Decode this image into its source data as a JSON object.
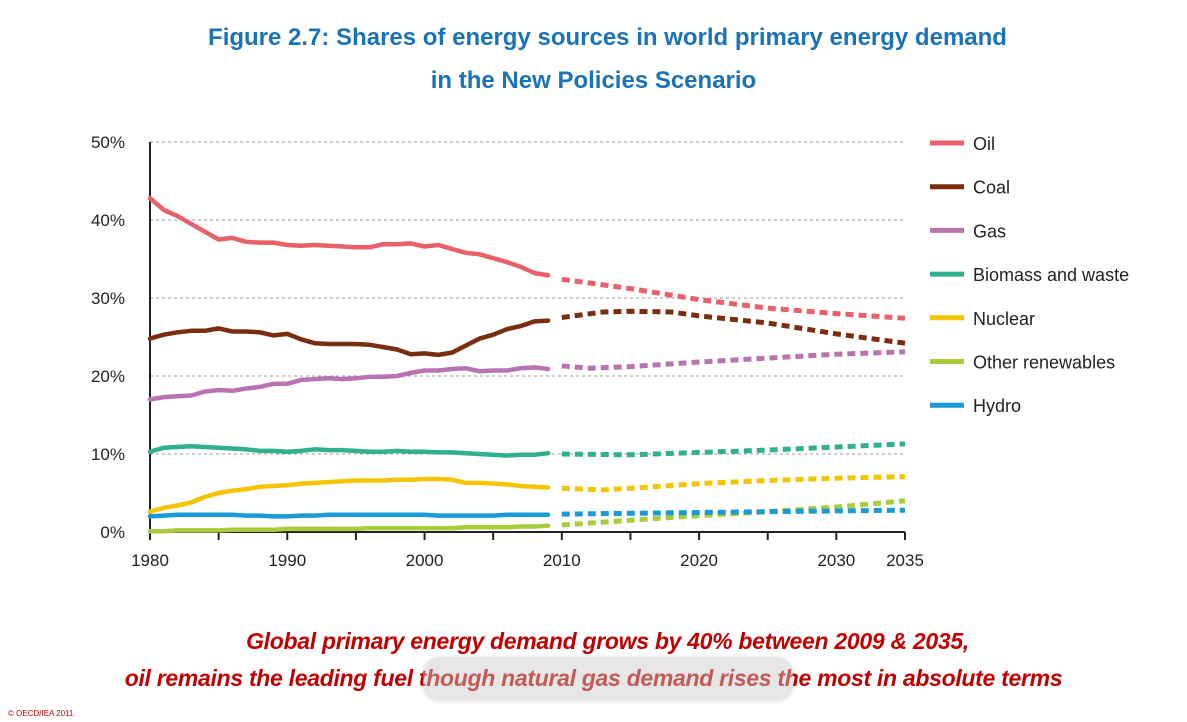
{
  "title": {
    "line1": "Figure 2.7: Shares of energy sources in world primary energy demand",
    "line2": "in the New Policies Scenario"
  },
  "caption": {
    "line1": "Global primary energy demand grows by 40% between 2009 & 2035,",
    "line2": "oil remains the leading fuel though natural gas demand rises the most in absolute terms"
  },
  "copyright": "© OECD/IEA 2011",
  "colors": {
    "title": "#1a72b8",
    "caption": "#c00000"
  },
  "chart_data": {
    "type": "line",
    "xlim": [
      1980,
      2035
    ],
    "ylim": [
      0,
      50
    ],
    "x_ticks": [
      "1980",
      "1990",
      "2000",
      "2010",
      "2020",
      "2030",
      "2035"
    ],
    "y_ticks": [
      "0%",
      "10%",
      "20%",
      "30%",
      "40%",
      "50%"
    ],
    "grid": "horizontal dotted",
    "legend": "right",
    "historical_x": [
      1980,
      1981,
      1982,
      1983,
      1984,
      1985,
      1986,
      1987,
      1988,
      1989,
      1990,
      1991,
      1992,
      1993,
      1994,
      1995,
      1996,
      1997,
      1998,
      1999,
      2000,
      2001,
      2002,
      2003,
      2004,
      2005,
      2006,
      2007,
      2008,
      2009
    ],
    "projection_style": "dashed",
    "series": [
      {
        "name": "Oil",
        "color": "#e8606a",
        "historical": [
          42.8,
          41.3,
          40.5,
          39.5,
          38.5,
          37.5,
          37.7,
          37.2,
          37.1,
          37.1,
          36.8,
          36.7,
          36.8,
          36.7,
          36.6,
          36.5,
          36.5,
          36.9,
          36.9,
          37.0,
          36.6,
          36.8,
          36.3,
          35.8,
          35.6,
          35.1,
          34.6,
          34.0,
          33.2,
          32.9
        ],
        "projection": [
          [
            2010,
            32.4
          ],
          [
            2015,
            31.2
          ],
          [
            2020,
            29.8
          ],
          [
            2025,
            28.7
          ],
          [
            2030,
            28.0
          ],
          [
            2035,
            27.4
          ]
        ]
      },
      {
        "name": "Coal",
        "color": "#7b2d10",
        "historical": [
          24.8,
          25.3,
          25.6,
          25.8,
          25.8,
          26.1,
          25.7,
          25.7,
          25.6,
          25.2,
          25.4,
          24.7,
          24.2,
          24.1,
          24.1,
          24.1,
          24.0,
          23.7,
          23.4,
          22.8,
          22.9,
          22.7,
          23.0,
          23.9,
          24.8,
          25.3,
          26.0,
          26.4,
          27.0,
          27.1
        ],
        "projection": [
          [
            2010,
            27.5
          ],
          [
            2013,
            28.2
          ],
          [
            2015,
            28.3
          ],
          [
            2018,
            28.2
          ],
          [
            2020,
            27.7
          ],
          [
            2025,
            26.8
          ],
          [
            2030,
            25.4
          ],
          [
            2035,
            24.2
          ]
        ]
      },
      {
        "name": "Gas",
        "color": "#b873b0",
        "historical": [
          17.0,
          17.3,
          17.4,
          17.5,
          18.0,
          18.2,
          18.1,
          18.4,
          18.6,
          19.0,
          19.0,
          19.5,
          19.6,
          19.7,
          19.6,
          19.7,
          19.9,
          19.9,
          20.0,
          20.4,
          20.7,
          20.7,
          20.9,
          21.0,
          20.6,
          20.7,
          20.7,
          21.0,
          21.1,
          20.9
        ],
        "projection": [
          [
            2010,
            21.3
          ],
          [
            2012,
            21.0
          ],
          [
            2015,
            21.2
          ],
          [
            2020,
            21.8
          ],
          [
            2025,
            22.3
          ],
          [
            2030,
            22.8
          ],
          [
            2035,
            23.1
          ]
        ]
      },
      {
        "name": "Biomass and waste",
        "color": "#2fb08e",
        "historical": [
          10.3,
          10.8,
          10.9,
          11.0,
          10.9,
          10.8,
          10.7,
          10.6,
          10.4,
          10.4,
          10.3,
          10.4,
          10.6,
          10.5,
          10.5,
          10.4,
          10.3,
          10.3,
          10.4,
          10.3,
          10.3,
          10.2,
          10.2,
          10.1,
          10.0,
          9.9,
          9.8,
          9.9,
          9.9,
          10.1
        ],
        "projection": [
          [
            2010,
            10.0
          ],
          [
            2015,
            9.9
          ],
          [
            2020,
            10.2
          ],
          [
            2025,
            10.5
          ],
          [
            2030,
            10.9
          ],
          [
            2035,
            11.3
          ]
        ]
      },
      {
        "name": "Nuclear",
        "color": "#f5c400",
        "historical": [
          2.6,
          3.1,
          3.4,
          3.8,
          4.5,
          5.0,
          5.3,
          5.5,
          5.8,
          5.9,
          6.0,
          6.2,
          6.3,
          6.4,
          6.5,
          6.6,
          6.6,
          6.6,
          6.7,
          6.7,
          6.8,
          6.8,
          6.7,
          6.3,
          6.3,
          6.2,
          6.1,
          5.9,
          5.8,
          5.7
        ],
        "projection": [
          [
            2010,
            5.6
          ],
          [
            2013,
            5.4
          ],
          [
            2015,
            5.6
          ],
          [
            2020,
            6.2
          ],
          [
            2025,
            6.6
          ],
          [
            2030,
            6.9
          ],
          [
            2035,
            7.1
          ]
        ]
      },
      {
        "name": "Other renewables",
        "color": "#a8cc3a",
        "historical": [
          0.1,
          0.1,
          0.2,
          0.2,
          0.2,
          0.2,
          0.3,
          0.3,
          0.3,
          0.3,
          0.4,
          0.4,
          0.4,
          0.4,
          0.4,
          0.4,
          0.5,
          0.5,
          0.5,
          0.5,
          0.5,
          0.5,
          0.5,
          0.6,
          0.6,
          0.6,
          0.6,
          0.7,
          0.7,
          0.8
        ],
        "projection": [
          [
            2010,
            0.9
          ],
          [
            2015,
            1.5
          ],
          [
            2020,
            2.1
          ],
          [
            2025,
            2.6
          ],
          [
            2030,
            3.2
          ],
          [
            2035,
            4.0
          ]
        ]
      },
      {
        "name": "Hydro",
        "color": "#1a9ad8",
        "historical": [
          2.0,
          2.1,
          2.2,
          2.2,
          2.2,
          2.2,
          2.2,
          2.1,
          2.1,
          2.0,
          2.0,
          2.1,
          2.1,
          2.2,
          2.2,
          2.2,
          2.2,
          2.2,
          2.2,
          2.2,
          2.2,
          2.1,
          2.1,
          2.1,
          2.1,
          2.1,
          2.2,
          2.2,
          2.2,
          2.2
        ],
        "projection": [
          [
            2010,
            2.3
          ],
          [
            2015,
            2.4
          ],
          [
            2020,
            2.5
          ],
          [
            2025,
            2.6
          ],
          [
            2030,
            2.7
          ],
          [
            2035,
            2.8
          ]
        ]
      }
    ]
  }
}
